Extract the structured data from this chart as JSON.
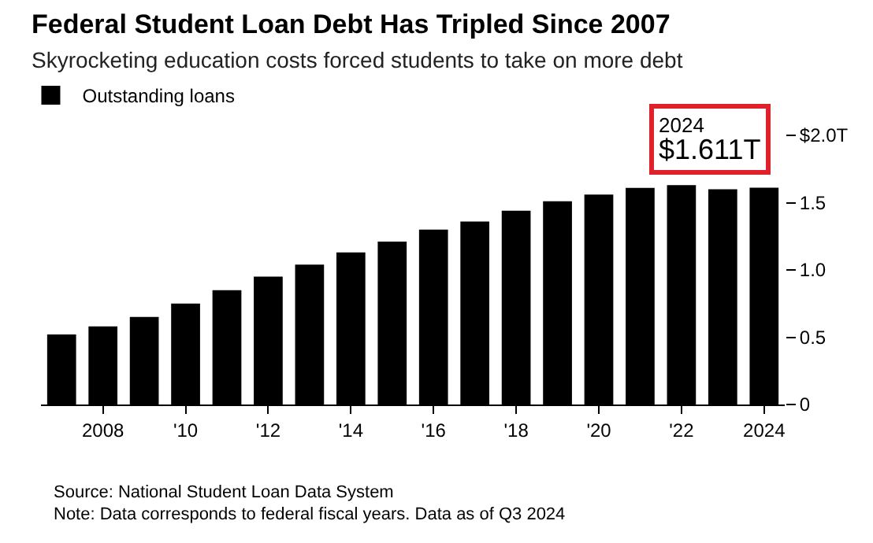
{
  "chart_data": {
    "type": "bar",
    "title": "Federal Student Loan Debt Has Tripled Since 2007",
    "subtitle": "Skyrocketing education costs forced students to take on more debt",
    "x": [
      2007,
      2008,
      2009,
      2010,
      2011,
      2012,
      2013,
      2014,
      2015,
      2016,
      2017,
      2018,
      2019,
      2020,
      2021,
      2022,
      2023,
      2024
    ],
    "series": [
      {
        "name": "Outstanding loans",
        "color": "#000000",
        "values": [
          0.52,
          0.58,
          0.65,
          0.75,
          0.85,
          0.95,
          1.04,
          1.13,
          1.21,
          1.3,
          1.36,
          1.44,
          1.51,
          1.56,
          1.61,
          1.63,
          1.6,
          1.611
        ]
      }
    ],
    "xlim": [
      2006.5,
      2024.5
    ],
    "xticks": [
      2008,
      {
        "value": 2010,
        "label": "'10"
      },
      {
        "value": 2012,
        "label": "'12"
      },
      {
        "value": 2014,
        "label": "'14"
      },
      {
        "value": 2016,
        "label": "'16"
      },
      {
        "value": 2018,
        "label": "'18"
      },
      {
        "value": 2020,
        "label": "'20"
      },
      {
        "value": 2022,
        "label": "'22"
      },
      2024
    ],
    "ylim": [
      0,
      2.0
    ],
    "yticks": [
      0,
      0.5,
      {
        "value": 1.0,
        "label": "1.0"
      },
      1.5,
      {
        "value": 2.0,
        "label": "$2.0T"
      }
    ],
    "annotations": [
      {
        "text": "2024\n$1.611T",
        "x": 2024,
        "y": 1.611
      },
      "Source: National Student Loan Data System",
      "Note: Data corresponds to federal fiscal years. Data as of Q3 2024"
    ],
    "legend": "top left"
  }
}
